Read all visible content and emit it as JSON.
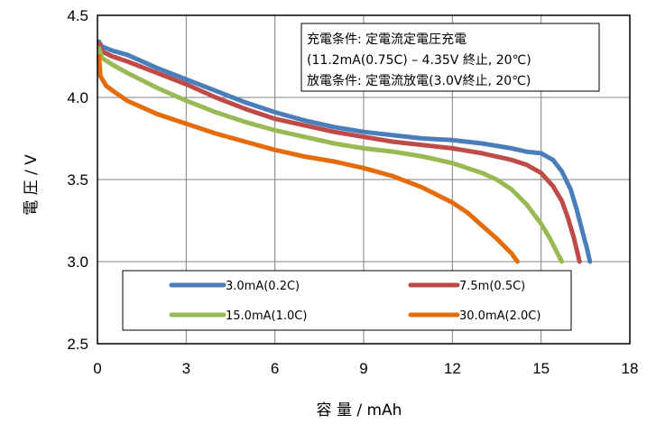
{
  "chart_data": {
    "type": "line",
    "xlabel": "容 量 / mAh",
    "ylabel": "電 圧 / V",
    "xlim": [
      0,
      18
    ],
    "ylim": [
      2.5,
      4.5
    ],
    "xticks": [
      "0",
      "3",
      "6",
      "9",
      "12",
      "15",
      "18"
    ],
    "yticks": [
      "2.5",
      "3.0",
      "3.5",
      "4.0",
      "4.5"
    ],
    "grid": true,
    "annotation": [
      "充電条件: 定電流定電圧充電",
      "(11.2mA(0.75C) – 4.35V 終止, 20℃)",
      "放電条件: 定電流放電(3.0V終止, 20℃)"
    ],
    "legend_position": "bottom",
    "series": [
      {
        "name": "3.0mA(0.2C)",
        "color": "#4a7ebb",
        "x": [
          0.05,
          0.15,
          0.5,
          1,
          2,
          3,
          4,
          5,
          6,
          7,
          8,
          9,
          10,
          11,
          12,
          13,
          14,
          14.5,
          15,
          15.4,
          15.7,
          16,
          16.2,
          16.4,
          16.55,
          16.65
        ],
        "y": [
          4.34,
          4.31,
          4.285,
          4.26,
          4.18,
          4.11,
          4.04,
          3.97,
          3.91,
          3.86,
          3.82,
          3.79,
          3.77,
          3.75,
          3.74,
          3.72,
          3.69,
          3.67,
          3.66,
          3.62,
          3.55,
          3.44,
          3.32,
          3.18,
          3.08,
          3.0
        ]
      },
      {
        "name": "7.5m(0.5C)",
        "color": "#be4b48",
        "x": [
          0.05,
          0.15,
          0.5,
          1,
          2,
          3,
          4,
          5,
          6,
          7,
          8,
          9,
          10,
          11,
          12,
          13,
          14,
          14.5,
          15,
          15.4,
          15.7,
          15.9,
          16.1,
          16.3
        ],
        "y": [
          4.33,
          4.28,
          4.25,
          4.22,
          4.15,
          4.08,
          4.0,
          3.93,
          3.87,
          3.83,
          3.79,
          3.76,
          3.73,
          3.71,
          3.69,
          3.66,
          3.62,
          3.59,
          3.54,
          3.46,
          3.37,
          3.27,
          3.15,
          3.0
        ]
      },
      {
        "name": "15.0mA(1.0C)",
        "color": "#98b954",
        "x": [
          0.05,
          0.15,
          0.5,
          1,
          2,
          3,
          4,
          5,
          6,
          7,
          8,
          9,
          10,
          11,
          12,
          13,
          13.5,
          14,
          14.5,
          15,
          15.3,
          15.5,
          15.7
        ],
        "y": [
          4.3,
          4.24,
          4.2,
          4.15,
          4.06,
          3.98,
          3.91,
          3.85,
          3.8,
          3.76,
          3.72,
          3.69,
          3.67,
          3.64,
          3.6,
          3.54,
          3.5,
          3.44,
          3.35,
          3.23,
          3.14,
          3.07,
          3.0
        ]
      },
      {
        "name": "30.0mA(2.0C)",
        "color": "#e46c0a",
        "x": [
          0.05,
          0.1,
          0.3,
          0.6,
          1,
          2,
          3,
          4,
          5,
          6,
          7,
          8,
          9,
          10,
          11,
          12,
          12.5,
          13,
          13.5,
          14,
          14.2
        ],
        "y": [
          4.25,
          4.13,
          4.07,
          4.03,
          3.98,
          3.9,
          3.84,
          3.78,
          3.73,
          3.68,
          3.64,
          3.61,
          3.57,
          3.52,
          3.45,
          3.36,
          3.3,
          3.22,
          3.14,
          3.05,
          3.0
        ]
      }
    ]
  }
}
